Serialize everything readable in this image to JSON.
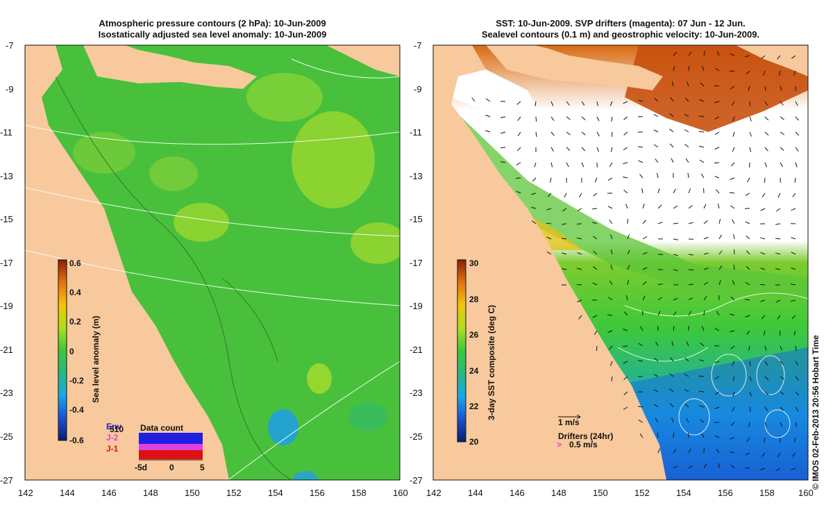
{
  "left_panel": {
    "title_line1": "Atmospheric pressure contours (2 hPa): 10-Jun-2009",
    "title_line2": "Isostatically adjusted sea level anomaly: 10-Jun-2009",
    "colorbar": {
      "label": "Sea level anomaly (m)",
      "ticks": [
        "0.6",
        "0.4",
        "0.2",
        "0",
        "-0.2",
        "-0.4",
        "-0.6"
      ],
      "colors": [
        "#08206e",
        "#1a4fd0",
        "#18a8e8",
        "#2ab87c",
        "#3ec83a",
        "#a8e020",
        "#f4c408",
        "#e07010",
        "#8a2006"
      ]
    },
    "data_count": {
      "title": "Data count",
      "sat_labels": [
        "Env",
        "J-2",
        "J-1"
      ],
      "sat_colors": [
        "#1f1fe0",
        "#e040e0",
        "#e01010"
      ],
      "count_label": "510",
      "axis_ticks": [
        "-5d",
        "0",
        "5"
      ]
    }
  },
  "right_panel": {
    "title_line1": "SST: 10-Jun-2009. SVP drifters (magenta): 07 Jun - 12 Jun.",
    "title_line2": "Sealevel contours (0.1 m) and geostrophic velocity: 10-Jun-2009.",
    "colorbar": {
      "label": "3-day SST composite (deg C)",
      "ticks": [
        "30",
        "28",
        "26",
        "24",
        "22",
        "20"
      ],
      "colors": [
        "#08206e",
        "#1a4fd0",
        "#18a8e8",
        "#2ab87c",
        "#3ec83a",
        "#a8e020",
        "#f4c408",
        "#e07010",
        "#8a2006"
      ]
    },
    "velocity_scale_label": "1 m/s",
    "drifters_label": "Drifters (24hr)",
    "drifters_scale_label": "0.5 m/s"
  },
  "axes": {
    "lon_ticks": [
      "142",
      "144",
      "146",
      "148",
      "150",
      "152",
      "154",
      "156",
      "158",
      "160"
    ],
    "lat_ticks": [
      "-7",
      "-9",
      "-11",
      "-13",
      "-15",
      "-17",
      "-19",
      "-21",
      "-23",
      "-25",
      "-27"
    ]
  },
  "colors": {
    "land": "#f7c99c",
    "cloud": "#ffffff"
  },
  "copyright": "© IMOS 02-Feb-2013 20:56 Hobart Time"
}
